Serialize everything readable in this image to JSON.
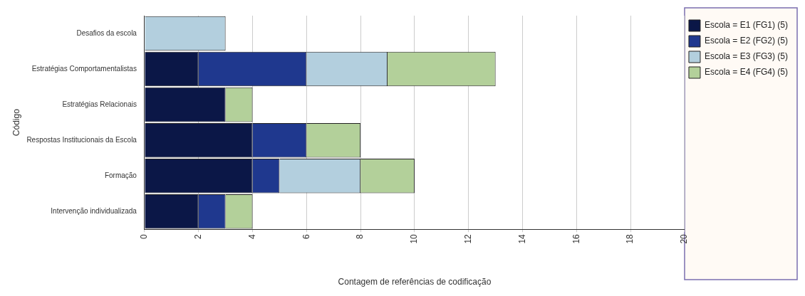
{
  "chart_data": {
    "type": "bar",
    "orientation": "horizontal",
    "stacked": true,
    "xlabel": "Contagem de referências de codificação",
    "ylabel": "Código",
    "categories": [
      "Desafios da escola",
      "Estratégias Comportamentalistas",
      "Estratégias Relacionais",
      "Respostas Institucionais da Escola",
      "Formação",
      "Intervenção individualizada"
    ],
    "series": [
      {
        "name": "Escola = E1 (FG1) (5)",
        "color": "#0b1747",
        "values": [
          null,
          2,
          3,
          4,
          4,
          2
        ]
      },
      {
        "name": "Escola = E2 (FG2) (5)",
        "color": "#1f388e",
        "values": [
          null,
          4,
          null,
          2,
          1,
          1
        ]
      },
      {
        "name": "Escola = E3 (FG3) (5)",
        "color": "#b3cfde",
        "values": [
          3,
          3,
          null,
          null,
          3,
          null
        ]
      },
      {
        "name": "Escola = E4 (FG4) (5)",
        "color": "#b3d09a",
        "values": [
          null,
          4,
          1,
          2,
          2,
          1
        ]
      }
    ],
    "xlim": [
      0,
      20
    ],
    "xticks": [
      0,
      2,
      4,
      6,
      8,
      10,
      12,
      14,
      16,
      18,
      20
    ],
    "grid": "x",
    "legend": "right"
  }
}
